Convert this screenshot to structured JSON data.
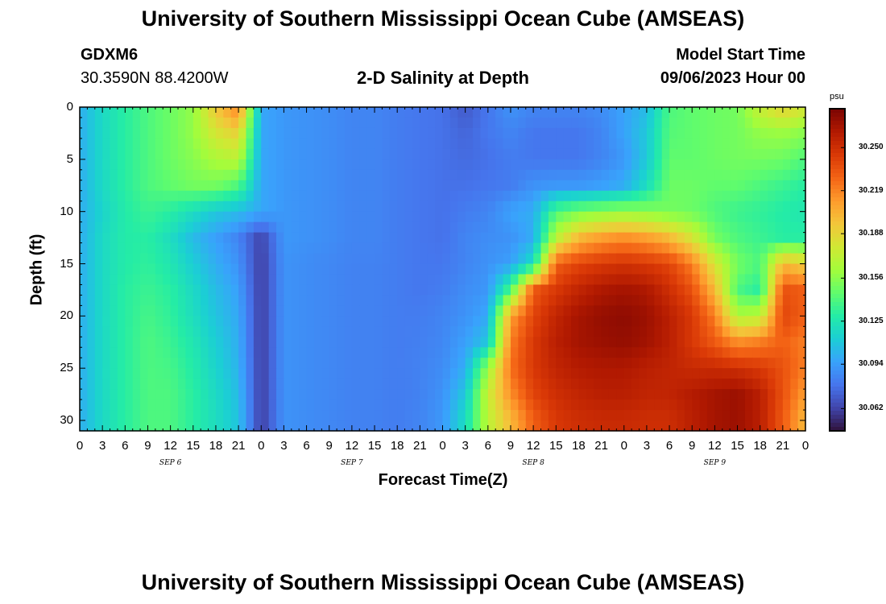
{
  "page": {
    "title": "University of Southern Mississippi Ocean Cube (AMSEAS)",
    "station": "GDXM6",
    "coords": "30.3590N  88.4200W",
    "subtitle": "2-D Salinity at Depth",
    "start_label": "Model Start Time",
    "start_value": "09/06/2023 Hour 00",
    "footer_title": "University of Southern Mississippi Ocean Cube (AMSEAS)"
  },
  "chart_data": {
    "type": "heatmap",
    "title": "2-D Salinity at Depth",
    "xlabel": "Forecast Time(Z)",
    "ylabel": "Depth (ft)",
    "x_tick_labels": [
      "0",
      "3",
      "6",
      "9",
      "12",
      "15",
      "18",
      "21",
      "0",
      "3",
      "6",
      "9",
      "12",
      "15",
      "18",
      "21",
      "0",
      "3",
      "6",
      "9",
      "12",
      "15",
      "18",
      "21",
      "0",
      "3",
      "6",
      "9",
      "12",
      "15",
      "18",
      "21",
      "0"
    ],
    "x_range_hours": [
      0,
      96
    ],
    "date_labels": [
      "SEP 6",
      "SEP 7",
      "SEP 8",
      "SEP 9"
    ],
    "y_ticks": [
      0,
      5,
      10,
      15,
      20,
      25,
      30
    ],
    "y_tick_labels": [
      "0",
      "5",
      "10",
      "15",
      "20",
      "25",
      "30"
    ],
    "y_range": [
      0,
      31
    ],
    "y_inverted": true,
    "colorbar": {
      "unit": "psu",
      "tick_labels": [
        "30.250",
        "30.219",
        "30.188",
        "30.156",
        "30.125",
        "30.094",
        "30.062"
      ],
      "min": 30.046,
      "max": 30.278
    },
    "colormap": [
      "#30123b",
      "#4145ab",
      "#4675ed",
      "#39a2fc",
      "#1bcfd4",
      "#24eca6",
      "#61fc6c",
      "#a4fc3b",
      "#d1e834",
      "#f3c63a",
      "#fe9b2d",
      "#f36315",
      "#d93806",
      "#b11901",
      "#7a0402"
    ],
    "grid": false,
    "time_hours": [
      0,
      3,
      6,
      9,
      12,
      15,
      18,
      21,
      24,
      27,
      30,
      33,
      36,
      39,
      42,
      45,
      48,
      51,
      54,
      57,
      60,
      63,
      66,
      69,
      72,
      75,
      78,
      81,
      84,
      87,
      90,
      93,
      96
    ],
    "depths_ft": [
      0,
      2.5,
      5,
      7.5,
      10,
      12.5,
      15,
      17.5,
      20,
      22.5,
      25,
      27.5,
      30
    ],
    "salinity_psu": [
      [
        30.1,
        30.118,
        30.13,
        30.14,
        30.148,
        30.158,
        30.195,
        30.22,
        30.098,
        30.092,
        30.09,
        30.088,
        30.085,
        30.085,
        30.082,
        30.08,
        30.078,
        30.07,
        30.08,
        30.09,
        30.085,
        30.085,
        30.085,
        30.088,
        30.096,
        30.105,
        30.14,
        30.145,
        30.148,
        30.15,
        30.175,
        30.19,
        30.18
      ],
      [
        30.1,
        30.118,
        30.13,
        30.14,
        30.148,
        30.158,
        30.18,
        30.19,
        30.098,
        30.092,
        30.09,
        30.088,
        30.085,
        30.085,
        30.082,
        30.08,
        30.078,
        30.074,
        30.08,
        30.085,
        30.08,
        30.08,
        30.08,
        30.085,
        30.096,
        30.11,
        30.142,
        30.145,
        30.148,
        30.15,
        30.158,
        30.16,
        30.155
      ],
      [
        30.1,
        30.118,
        30.13,
        30.14,
        30.148,
        30.155,
        30.165,
        30.17,
        30.098,
        30.092,
        30.09,
        30.088,
        30.085,
        30.085,
        30.082,
        30.08,
        30.078,
        30.076,
        30.078,
        30.082,
        30.08,
        30.08,
        30.08,
        30.085,
        30.092,
        30.11,
        30.145,
        30.145,
        30.148,
        30.15,
        30.15,
        30.148,
        30.14
      ],
      [
        30.1,
        30.118,
        30.13,
        30.14,
        30.145,
        30.15,
        30.15,
        30.14,
        30.098,
        30.092,
        30.09,
        30.088,
        30.085,
        30.085,
        30.082,
        30.08,
        30.078,
        30.078,
        30.08,
        30.082,
        30.09,
        30.092,
        30.092,
        30.095,
        30.1,
        30.12,
        30.148,
        30.148,
        30.145,
        30.145,
        30.14,
        30.135,
        30.13
      ],
      [
        30.1,
        30.115,
        30.128,
        30.135,
        30.13,
        30.12,
        30.11,
        30.105,
        30.098,
        30.092,
        30.09,
        30.088,
        30.085,
        30.085,
        30.082,
        30.08,
        30.078,
        30.082,
        30.085,
        30.096,
        30.1,
        30.14,
        30.15,
        30.155,
        30.158,
        30.155,
        30.15,
        30.148,
        30.14,
        30.135,
        30.132,
        30.128,
        30.125
      ],
      [
        30.1,
        30.118,
        30.128,
        30.13,
        30.12,
        30.105,
        30.095,
        30.085,
        30.062,
        30.092,
        30.09,
        30.088,
        30.085,
        30.085,
        30.082,
        30.08,
        30.078,
        30.085,
        30.088,
        30.09,
        30.1,
        30.17,
        30.2,
        30.21,
        30.215,
        30.21,
        30.2,
        30.18,
        30.15,
        30.14,
        30.135,
        30.13,
        30.13
      ],
      [
        30.1,
        30.118,
        30.128,
        30.132,
        30.125,
        30.112,
        30.1,
        30.09,
        30.06,
        30.09,
        30.088,
        30.086,
        30.084,
        30.084,
        30.082,
        30.08,
        30.08,
        30.085,
        30.09,
        30.095,
        30.12,
        30.23,
        30.24,
        30.245,
        30.248,
        30.245,
        30.24,
        30.22,
        30.18,
        30.15,
        30.14,
        30.2,
        30.19
      ],
      [
        30.1,
        30.118,
        30.13,
        30.135,
        30.13,
        30.118,
        30.105,
        30.095,
        30.06,
        30.09,
        30.088,
        30.086,
        30.084,
        30.084,
        30.082,
        30.08,
        30.082,
        30.088,
        30.092,
        30.14,
        30.232,
        30.245,
        30.255,
        30.262,
        30.265,
        30.262,
        30.25,
        30.235,
        30.2,
        30.14,
        30.13,
        30.235,
        30.23
      ],
      [
        30.1,
        30.118,
        30.13,
        30.138,
        30.132,
        30.12,
        30.108,
        30.098,
        30.06,
        30.09,
        30.088,
        30.086,
        30.084,
        30.084,
        30.082,
        30.082,
        30.085,
        30.09,
        30.098,
        30.21,
        30.24,
        30.255,
        30.265,
        30.27,
        30.272,
        30.268,
        30.258,
        30.245,
        30.22,
        30.165,
        30.17,
        30.24,
        30.23
      ],
      [
        30.1,
        30.118,
        30.13,
        30.14,
        30.135,
        30.125,
        30.112,
        30.1,
        30.06,
        30.09,
        30.088,
        30.086,
        30.084,
        30.084,
        30.082,
        30.083,
        30.086,
        30.095,
        30.11,
        30.22,
        30.245,
        30.258,
        30.265,
        30.268,
        30.27,
        30.266,
        30.258,
        30.245,
        30.232,
        30.215,
        30.22,
        30.23,
        30.22
      ],
      [
        30.1,
        30.118,
        30.13,
        30.14,
        30.138,
        30.128,
        30.115,
        30.102,
        30.06,
        30.09,
        30.088,
        30.086,
        30.084,
        30.084,
        30.082,
        30.084,
        30.088,
        30.1,
        30.16,
        30.225,
        30.245,
        30.255,
        30.26,
        30.262,
        30.262,
        30.258,
        30.255,
        30.252,
        30.252,
        30.25,
        30.245,
        30.235,
        30.22
      ],
      [
        30.1,
        30.118,
        30.13,
        30.14,
        30.14,
        30.13,
        30.118,
        30.105,
        30.06,
        30.09,
        30.088,
        30.086,
        30.084,
        30.084,
        30.082,
        30.084,
        30.09,
        30.11,
        30.175,
        30.215,
        30.24,
        30.25,
        30.255,
        30.258,
        30.258,
        30.255,
        30.255,
        30.26,
        30.265,
        30.268,
        30.258,
        30.235,
        30.21
      ],
      [
        30.1,
        30.118,
        30.13,
        30.14,
        30.14,
        30.13,
        30.12,
        30.108,
        30.06,
        30.09,
        30.088,
        30.086,
        30.084,
        30.084,
        30.082,
        30.085,
        30.092,
        30.12,
        30.17,
        30.2,
        30.23,
        30.245,
        30.25,
        30.252,
        30.252,
        30.25,
        30.25,
        30.258,
        30.265,
        30.268,
        30.258,
        30.232,
        30.2
      ]
    ]
  }
}
